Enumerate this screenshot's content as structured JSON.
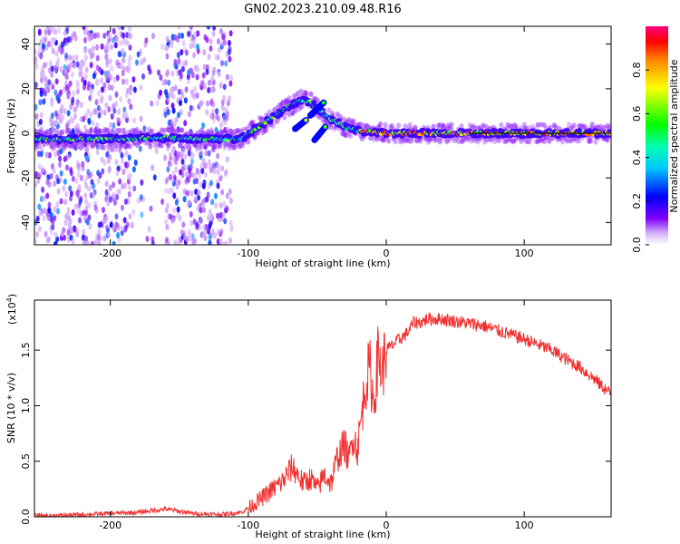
{
  "title": "GN02.2023.210.09.48.R16",
  "colors": {
    "snr_line": "#f03030",
    "axis": "#000000",
    "background": "#ffffff"
  },
  "chart_data": [
    {
      "type": "heatmap",
      "xlabel": "Height of straight line (km)",
      "ylabel": "Frequency (Hz)",
      "xlim": [
        -255,
        163
      ],
      "ylim": [
        -50,
        48
      ],
      "xticks": [
        -200,
        -100,
        0,
        100
      ],
      "yticks": [
        -40,
        -20,
        0,
        20,
        40
      ],
      "colorbar": {
        "label": "Normalized spectral amplitude",
        "range": [
          0.0,
          1.0
        ],
        "ticks": [
          "0.0",
          "0.2",
          "0.4",
          "0.6",
          "0.8"
        ],
        "tick_values": [
          0.0,
          0.2,
          0.4,
          0.6,
          0.8
        ]
      },
      "ridge": [
        [
          -255,
          -2.5
        ],
        [
          -200,
          -2.5
        ],
        [
          -165,
          -2.0
        ],
        [
          -140,
          -2.5
        ],
        [
          -120,
          -2.5
        ],
        [
          -105,
          -2.5
        ],
        [
          -100,
          0
        ],
        [
          -90,
          4
        ],
        [
          -80,
          8
        ],
        [
          -70,
          12
        ],
        [
          -62,
          15
        ],
        [
          -55,
          14
        ],
        [
          -48,
          10
        ],
        [
          -40,
          6
        ],
        [
          -30,
          3
        ],
        [
          -20,
          1
        ],
        [
          0,
          0
        ],
        [
          50,
          0
        ],
        [
          100,
          0
        ],
        [
          163,
          0
        ]
      ]
    },
    {
      "type": "line",
      "xlabel": "Height of straight line (km)",
      "ylabel": "SNR (10 * v/v)",
      "y_multiplier": "(x10",
      "y_multiplier_exp": "4",
      "xlim": [
        -255,
        163
      ],
      "ylim": [
        0,
        1.95
      ],
      "xticks": [
        -200,
        -100,
        0,
        100
      ],
      "yticks": [
        0.0,
        0.5,
        1.0,
        1.5
      ],
      "ytick_labels": [
        "0.0",
        "0.5",
        "1.0",
        "1.5"
      ],
      "series": [
        {
          "x": [
            -255,
            -240,
            -220,
            -200,
            -180,
            -160,
            -150,
            -140,
            -120,
            -105,
            -95,
            -85,
            -75,
            -68,
            -60,
            -55,
            -50,
            -45,
            -40,
            -35,
            -30,
            -27,
            -24,
            -21,
            -18,
            -15,
            -12,
            -9,
            -6,
            -3,
            0,
            5,
            10,
            15,
            20,
            25,
            30,
            40,
            50,
            60,
            70,
            80,
            90,
            100,
            110,
            120,
            130,
            140,
            150,
            163
          ],
          "y": [
            0.01,
            0.01,
            0.02,
            0.03,
            0.04,
            0.07,
            0.05,
            0.03,
            0.02,
            0.04,
            0.12,
            0.22,
            0.32,
            0.45,
            0.3,
            0.35,
            0.25,
            0.38,
            0.3,
            0.55,
            0.65,
            0.5,
            0.75,
            0.6,
            0.9,
            1.2,
            1.35,
            1.0,
            1.45,
            1.3,
            1.5,
            1.55,
            1.6,
            1.65,
            1.75,
            1.75,
            1.78,
            1.78,
            1.76,
            1.74,
            1.72,
            1.68,
            1.64,
            1.6,
            1.55,
            1.5,
            1.42,
            1.35,
            1.25,
            1.1
          ]
        }
      ]
    }
  ]
}
